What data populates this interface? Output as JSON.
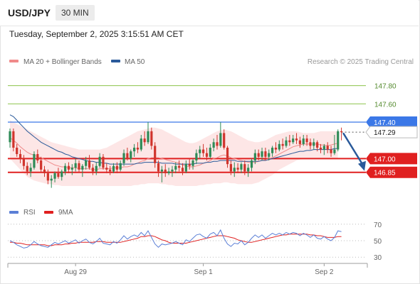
{
  "header": {
    "symbol": "USD/JPY",
    "timeframe": "30 MIN"
  },
  "timestamp": "Tuesday, September 2, 2025 3:15:51 AM CET",
  "legend": {
    "ma20": {
      "label": "MA 20 + Bollinger Bands",
      "color": "#f08a8a"
    },
    "ma50": {
      "label": "MA 50",
      "color": "#2a5a9a"
    },
    "credit": "Research © 2025 Trading Central"
  },
  "rsi_legend": {
    "rsi": {
      "label": "RSI",
      "color": "#5b7fd6"
    },
    "ma9": {
      "label": "9MA",
      "color": "#e02020"
    }
  },
  "colors": {
    "up": "#2e8b57",
    "down": "#d0342c",
    "band_fill": "#fde2e2",
    "resistance": "#3b78e7",
    "support": "#e02020",
    "target_green": "#8bc34a",
    "arrow": "#2a5a9a"
  },
  "chart_data": {
    "type": "candlestick",
    "title": "USD/JPY",
    "timeframe": "30 MIN",
    "ylim": [
      146.56,
      147.96
    ],
    "x_tick_labels": [
      "Aug 29",
      "Sep 1",
      "Sep 2"
    ],
    "x_tick_bar_index": [
      19,
      56,
      91
    ],
    "candles": [
      [
        147.18,
        147.33,
        147.12,
        147.3
      ],
      [
        147.3,
        147.33,
        147.08,
        147.12
      ],
      [
        147.12,
        147.16,
        147.02,
        147.05
      ],
      [
        147.05,
        147.1,
        146.95,
        147.0
      ],
      [
        147.0,
        147.04,
        146.88,
        146.92
      ],
      [
        146.92,
        146.96,
        146.82,
        146.86
      ],
      [
        146.86,
        146.95,
        146.8,
        146.9
      ],
      [
        146.9,
        147.08,
        146.88,
        147.05
      ],
      [
        147.05,
        147.1,
        146.95,
        146.98
      ],
      [
        146.98,
        147.02,
        146.85,
        146.88
      ],
      [
        146.88,
        146.92,
        146.8,
        146.84
      ],
      [
        146.84,
        146.88,
        146.72,
        146.76
      ],
      [
        146.76,
        146.82,
        146.68,
        146.78
      ],
      [
        146.78,
        146.86,
        146.74,
        146.84
      ],
      [
        146.84,
        146.9,
        146.78,
        146.8
      ],
      [
        146.8,
        146.88,
        146.76,
        146.86
      ],
      [
        146.86,
        146.95,
        146.82,
        146.92
      ],
      [
        146.92,
        146.96,
        146.84,
        146.88
      ],
      [
        146.88,
        146.94,
        146.82,
        146.9
      ],
      [
        146.9,
        147.0,
        146.86,
        146.95
      ],
      [
        146.95,
        146.98,
        146.85,
        146.88
      ],
      [
        146.88,
        146.94,
        146.8,
        146.92
      ],
      [
        146.92,
        147.02,
        146.88,
        146.98
      ],
      [
        146.98,
        147.04,
        146.88,
        146.9
      ],
      [
        146.9,
        146.94,
        146.82,
        146.86
      ],
      [
        146.86,
        146.96,
        146.82,
        146.92
      ],
      [
        146.92,
        147.06,
        146.9,
        147.02
      ],
      [
        147.02,
        147.05,
        146.88,
        146.9
      ],
      [
        146.9,
        146.95,
        146.84,
        146.88
      ],
      [
        146.88,
        146.92,
        146.82,
        146.86
      ],
      [
        146.86,
        146.95,
        146.84,
        146.92
      ],
      [
        146.92,
        146.96,
        146.84,
        146.88
      ],
      [
        146.88,
        146.98,
        146.86,
        146.95
      ],
      [
        146.95,
        147.1,
        146.92,
        147.06
      ],
      [
        147.06,
        147.12,
        146.98,
        147.0
      ],
      [
        147.0,
        147.1,
        146.96,
        147.08
      ],
      [
        147.08,
        147.16,
        147.02,
        147.12
      ],
      [
        147.12,
        147.18,
        147.06,
        147.1
      ],
      [
        147.1,
        147.26,
        147.08,
        147.22
      ],
      [
        147.22,
        147.3,
        147.14,
        147.18
      ],
      [
        147.18,
        147.4,
        147.16,
        147.3
      ],
      [
        147.3,
        147.34,
        147.1,
        147.14
      ],
      [
        147.14,
        147.18,
        146.9,
        146.95
      ],
      [
        146.95,
        146.98,
        146.8,
        146.86
      ],
      [
        146.86,
        146.92,
        146.74,
        146.88
      ],
      [
        146.88,
        146.94,
        146.8,
        146.84
      ],
      [
        146.84,
        146.9,
        146.82,
        146.86
      ],
      [
        146.86,
        146.92,
        146.8,
        146.88
      ],
      [
        146.88,
        146.96,
        146.84,
        146.92
      ],
      [
        146.92,
        146.98,
        146.86,
        146.9
      ],
      [
        146.9,
        146.95,
        146.82,
        146.86
      ],
      [
        146.86,
        146.98,
        146.84,
        146.94
      ],
      [
        146.94,
        147.0,
        146.88,
        146.92
      ],
      [
        146.92,
        147.0,
        146.88,
        146.98
      ],
      [
        146.98,
        147.1,
        146.94,
        147.06
      ],
      [
        147.06,
        147.14,
        147.0,
        147.1
      ],
      [
        147.1,
        147.16,
        147.02,
        147.06
      ],
      [
        147.06,
        147.12,
        146.98,
        147.02
      ],
      [
        147.02,
        147.16,
        147.0,
        147.12
      ],
      [
        147.12,
        147.22,
        147.08,
        147.18
      ],
      [
        147.18,
        147.26,
        147.1,
        147.14
      ],
      [
        147.14,
        147.4,
        147.12,
        147.28
      ],
      [
        147.28,
        147.32,
        147.1,
        147.12
      ],
      [
        147.12,
        147.14,
        146.9,
        146.94
      ],
      [
        146.94,
        146.98,
        146.82,
        146.86
      ],
      [
        146.86,
        146.96,
        146.8,
        146.9
      ],
      [
        146.9,
        146.95,
        146.84,
        146.88
      ],
      [
        146.88,
        146.96,
        146.84,
        146.94
      ],
      [
        146.94,
        146.98,
        146.82,
        146.86
      ],
      [
        146.86,
        146.94,
        146.8,
        146.9
      ],
      [
        146.9,
        147.0,
        146.86,
        146.98
      ],
      [
        146.98,
        147.1,
        146.94,
        147.06
      ],
      [
        147.06,
        147.1,
        146.98,
        147.02
      ],
      [
        147.02,
        147.12,
        146.98,
        147.08
      ],
      [
        147.08,
        147.12,
        146.98,
        147.02
      ],
      [
        147.02,
        147.1,
        146.98,
        147.06
      ],
      [
        147.06,
        147.14,
        147.02,
        147.12
      ],
      [
        147.12,
        147.18,
        147.06,
        147.1
      ],
      [
        147.1,
        147.2,
        147.08,
        147.16
      ],
      [
        147.16,
        147.22,
        147.1,
        147.14
      ],
      [
        147.14,
        147.24,
        147.12,
        147.2
      ],
      [
        147.2,
        147.26,
        147.14,
        147.18
      ],
      [
        147.18,
        147.26,
        147.16,
        147.22
      ],
      [
        147.22,
        147.28,
        147.16,
        147.2
      ],
      [
        147.2,
        147.24,
        147.12,
        147.16
      ],
      [
        147.16,
        147.26,
        147.14,
        147.22
      ],
      [
        147.22,
        147.26,
        147.14,
        147.18
      ],
      [
        147.18,
        147.22,
        147.1,
        147.14
      ],
      [
        147.14,
        147.22,
        147.1,
        147.18
      ],
      [
        147.18,
        147.2,
        147.08,
        147.12
      ],
      [
        147.12,
        147.16,
        147.06,
        147.1
      ],
      [
        147.1,
        147.16,
        147.04,
        147.14
      ],
      [
        147.14,
        147.18,
        147.06,
        147.1
      ],
      [
        147.1,
        147.14,
        147.02,
        147.06
      ],
      [
        147.06,
        147.26,
        147.04,
        147.1
      ],
      [
        147.1,
        147.32,
        147.08,
        147.3
      ],
      [
        147.3,
        147.34,
        147.2,
        147.29
      ]
    ],
    "series": [
      {
        "name": "MA 20",
        "values": [
          147.23,
          147.2,
          147.17,
          147.13,
          147.1,
          147.07,
          147.05,
          147.04,
          147.02,
          147.01,
          146.99,
          146.97,
          146.95,
          146.93,
          146.92,
          146.91,
          146.91,
          146.9,
          146.9,
          146.9,
          146.89,
          146.89,
          146.89,
          146.89,
          146.88,
          146.88,
          146.89,
          146.89,
          146.89,
          146.89,
          146.9,
          146.9,
          146.9,
          146.91,
          146.91,
          146.92,
          146.94,
          146.95,
          146.97,
          146.98,
          147.0,
          147.01,
          147.01,
          147.01,
          147.0,
          146.99,
          146.98,
          146.97,
          146.96,
          146.95,
          146.93,
          146.92,
          146.91,
          146.91,
          146.92,
          146.93,
          146.95,
          146.96,
          146.98,
          147.0,
          147.01,
          147.03,
          147.04,
          147.03,
          147.01,
          147.0,
          146.99,
          146.98,
          146.97,
          146.96,
          146.96,
          146.96,
          146.97,
          146.98,
          146.99,
          147.0,
          147.01,
          147.03,
          147.05,
          147.07,
          147.09,
          147.11,
          147.13,
          147.14,
          147.15,
          147.16,
          147.16,
          147.16,
          147.16,
          147.16,
          147.15,
          147.15,
          147.14,
          147.15,
          147.16,
          147.17
        ]
      },
      {
        "name": "MA 50",
        "values": [
          147.48,
          147.46,
          147.42,
          147.38,
          147.34,
          147.3,
          147.27,
          147.24,
          147.21,
          147.18,
          147.16,
          147.14,
          147.12,
          147.1,
          147.08,
          147.07,
          147.05,
          147.04,
          147.02,
          147.01,
          147.0,
          146.99,
          146.98,
          146.97,
          146.97,
          146.96,
          146.96,
          146.95,
          146.95,
          146.94,
          146.94,
          146.94,
          146.94,
          146.94,
          146.94,
          146.94,
          146.94,
          146.95,
          146.95,
          146.96,
          146.96,
          146.96,
          146.96,
          146.96,
          146.95,
          146.95,
          146.95,
          146.95,
          146.94,
          146.94,
          146.94,
          146.94,
          146.94,
          146.94,
          146.95,
          146.95,
          146.95,
          146.96,
          146.96,
          146.97,
          146.97,
          146.98,
          146.98,
          146.98,
          146.98,
          146.98,
          146.97,
          146.97,
          146.97,
          146.97,
          146.97,
          146.97,
          146.97,
          146.98,
          146.98,
          146.99,
          147.0,
          147.01,
          147.02,
          147.03,
          147.04,
          147.05,
          147.06,
          147.07,
          147.08,
          147.08,
          147.09,
          147.09,
          147.1,
          147.1,
          147.1,
          147.1,
          147.1,
          147.1,
          147.11,
          147.11
        ]
      },
      {
        "name": "Bollinger Upper",
        "values": [
          147.42,
          147.4,
          147.38,
          147.36,
          147.34,
          147.32,
          147.3,
          147.28,
          147.26,
          147.24,
          147.22,
          147.2,
          147.18,
          147.17,
          147.16,
          147.15,
          147.14,
          147.13,
          147.12,
          147.11,
          147.1,
          147.1,
          147.1,
          147.1,
          147.1,
          147.1,
          147.1,
          147.11,
          147.12,
          147.14,
          147.16,
          147.18,
          147.2,
          147.22,
          147.24,
          147.26,
          147.28,
          147.3,
          147.31,
          147.32,
          147.33,
          147.34,
          147.34,
          147.33,
          147.32,
          147.3,
          147.28,
          147.26,
          147.24,
          147.22,
          147.2,
          147.18,
          147.17,
          147.17,
          147.18,
          147.2,
          147.22,
          147.24,
          147.26,
          147.28,
          147.3,
          147.31,
          147.32,
          147.31,
          147.3,
          147.28,
          147.26,
          147.24,
          147.22,
          147.2,
          147.19,
          147.18,
          147.18,
          147.19,
          147.2,
          147.22,
          147.24,
          147.26,
          147.27,
          147.28,
          147.29,
          147.3,
          147.3,
          147.3,
          147.29,
          147.28,
          147.28,
          147.28,
          147.28,
          147.29,
          147.3,
          147.3,
          147.3,
          147.3,
          147.3,
          147.3
        ]
      },
      {
        "name": "Bollinger Lower",
        "values": [
          147.0,
          146.96,
          146.92,
          146.88,
          146.84,
          146.8,
          146.78,
          146.76,
          146.75,
          146.74,
          146.73,
          146.72,
          146.72,
          146.71,
          146.71,
          146.7,
          146.7,
          146.7,
          146.7,
          146.7,
          146.7,
          146.7,
          146.7,
          146.7,
          146.7,
          146.7,
          146.7,
          146.7,
          146.7,
          146.7,
          146.7,
          146.7,
          146.7,
          146.7,
          146.7,
          146.7,
          146.71,
          146.71,
          146.72,
          146.72,
          146.73,
          146.73,
          146.73,
          146.73,
          146.72,
          146.72,
          146.71,
          146.71,
          146.7,
          146.7,
          146.7,
          146.7,
          146.7,
          146.7,
          146.7,
          146.71,
          146.71,
          146.72,
          146.72,
          146.73,
          146.73,
          146.73,
          146.74,
          146.74,
          146.73,
          146.73,
          146.72,
          146.72,
          146.72,
          146.72,
          146.72,
          146.73,
          146.74,
          146.76,
          146.78,
          146.8,
          146.82,
          146.85,
          146.88,
          146.9,
          146.92,
          146.94,
          146.96,
          146.98,
          146.99,
          147.0,
          147.0,
          147.0,
          147.0,
          147.0,
          147.0,
          147.0,
          147.0,
          147.0,
          147.0,
          147.0
        ]
      }
    ],
    "levels": [
      {
        "value": 147.8,
        "label": "147.80",
        "kind": "target"
      },
      {
        "value": 147.6,
        "label": "147.60",
        "kind": "target"
      },
      {
        "value": 147.4,
        "label": "147.40",
        "kind": "pivot"
      },
      {
        "value": 147.29,
        "label": "147.29",
        "kind": "last"
      },
      {
        "value": 147.0,
        "label": "147.00",
        "kind": "support"
      },
      {
        "value": 146.85,
        "label": "146.85",
        "kind": "support"
      }
    ],
    "forecast_arrow": {
      "from": 147.29,
      "to": 146.85
    },
    "rsi": {
      "ylim": [
        25,
        75
      ],
      "ticks": [
        70,
        50,
        30
      ],
      "rsi_values": [
        50,
        48,
        45,
        43,
        41,
        42,
        45,
        49,
        46,
        44,
        43,
        42,
        45,
        48,
        46,
        48,
        50,
        47,
        49,
        51,
        47,
        50,
        52,
        48,
        46,
        49,
        53,
        47,
        46,
        45,
        49,
        47,
        51,
        56,
        52,
        55,
        57,
        55,
        60,
        56,
        62,
        54,
        46,
        42,
        46,
        45,
        46,
        47,
        49,
        47,
        45,
        51,
        49,
        53,
        57,
        58,
        55,
        53,
        58,
        60,
        56,
        63,
        53,
        46,
        43,
        47,
        46,
        50,
        45,
        48,
        53,
        57,
        54,
        57,
        53,
        56,
        59,
        57,
        59,
        57,
        60,
        58,
        60,
        59,
        56,
        59,
        57,
        54,
        57,
        53,
        52,
        55,
        52,
        50,
        54,
        62,
        61
      ],
      "ma9_values": [
        48,
        48,
        47,
        47,
        46,
        45,
        45,
        45,
        45,
        45,
        45,
        44,
        44,
        45,
        45,
        45,
        46,
        46,
        47,
        47,
        48,
        48,
        48,
        48,
        48,
        49,
        49,
        49,
        48,
        48,
        48,
        48,
        48,
        49,
        50,
        51,
        52,
        53,
        55,
        55,
        56,
        56,
        55,
        53,
        51,
        50,
        48,
        47,
        47,
        47,
        47,
        47,
        48,
        49,
        50,
        51,
        52,
        53,
        54,
        55,
        56,
        56,
        56,
        55,
        54,
        53,
        51,
        50,
        49,
        48,
        48,
        49,
        50,
        51,
        52,
        53,
        54,
        55,
        56,
        57,
        57,
        58,
        58,
        58,
        58,
        58,
        58,
        57,
        57,
        56,
        56,
        55,
        54,
        54,
        54,
        55,
        55
      ]
    }
  }
}
